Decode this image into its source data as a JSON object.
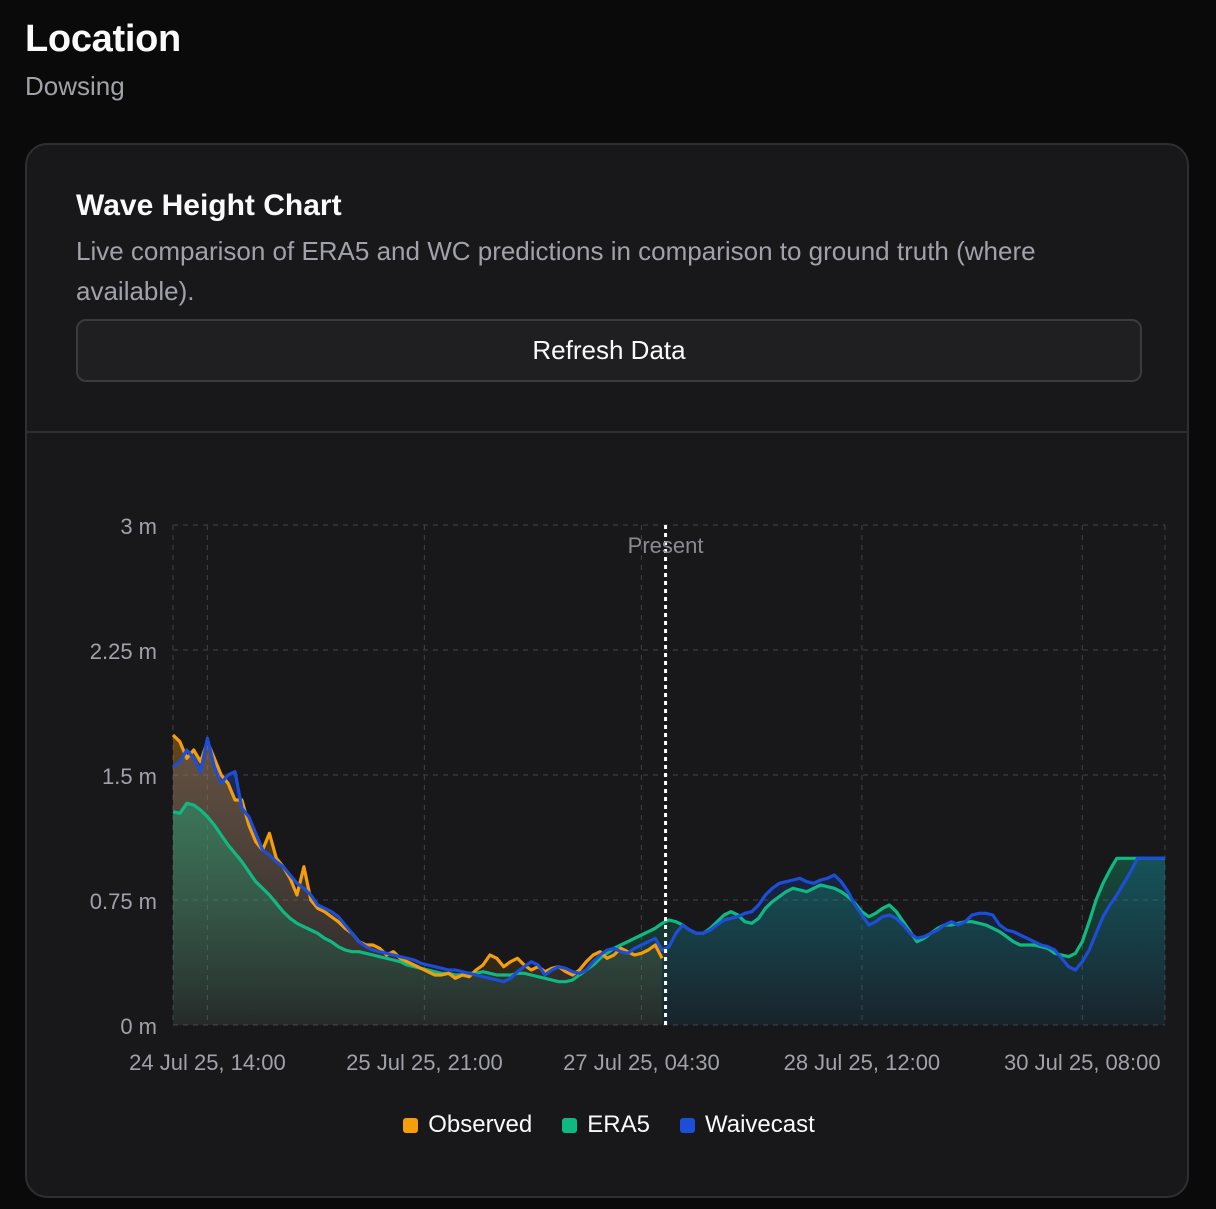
{
  "header": {
    "title": "Location",
    "subtitle": "Dowsing"
  },
  "card": {
    "title": "Wave Height Chart",
    "description": "Live comparison of ERA5 and WC predictions in comparison to ground truth (where available).",
    "refresh_label": "Refresh Data"
  },
  "colors": {
    "observed": "#f59e0b",
    "era5": "#10b981",
    "waivecast": "#1d4ed8",
    "present_line": "#ffffff",
    "grid": "#3a3a40"
  },
  "chart_data": {
    "type": "line",
    "title": "Wave Height Chart",
    "ylabel": "",
    "xlabel": "",
    "ylim": [
      0,
      3
    ],
    "yticks": [
      "0 m",
      "0.75 m",
      "1.5 m",
      "2.25 m",
      "3 m"
    ],
    "yticks_values": [
      0,
      0.75,
      1.5,
      2.25,
      3
    ],
    "xlim": [
      0,
      144
    ],
    "xticks": [
      {
        "label": "24 Jul 25, 14:00",
        "x": 5
      },
      {
        "label": "25 Jul 25, 21:00",
        "x": 36.5
      },
      {
        "label": "27 Jul 25, 04:30",
        "x": 68
      },
      {
        "label": "28 Jul 25, 12:00",
        "x": 100
      },
      {
        "label": "30 Jul 25, 08:00",
        "x": 132
      }
    ],
    "present_x": 71.5,
    "present_label": "Present",
    "legend": [
      "Observed",
      "ERA5",
      "Waivecast"
    ],
    "legend_position": "bottom-center",
    "series": [
      {
        "name": "Observed",
        "x": [
          0,
          1,
          2,
          3,
          4,
          5,
          6,
          7,
          8,
          9,
          10,
          11,
          12,
          13,
          14,
          15,
          16,
          17,
          18,
          19,
          20,
          21,
          22,
          23,
          24,
          25,
          26,
          27,
          28,
          29,
          30,
          31,
          32,
          33,
          34,
          35,
          36,
          37,
          38,
          39,
          40,
          41,
          42,
          43,
          44,
          45,
          46,
          47,
          48,
          49,
          50,
          51,
          52,
          53,
          54,
          55,
          56,
          57,
          58,
          59,
          60,
          61,
          62,
          63,
          64,
          65,
          66,
          67,
          68,
          69,
          70,
          71
        ],
        "values": [
          1.74,
          1.7,
          1.6,
          1.65,
          1.58,
          1.7,
          1.6,
          1.5,
          1.45,
          1.35,
          1.35,
          1.2,
          1.1,
          1.05,
          1.15,
          1.0,
          0.95,
          0.88,
          0.78,
          0.95,
          0.75,
          0.7,
          0.68,
          0.65,
          0.62,
          0.58,
          0.55,
          0.5,
          0.48,
          0.48,
          0.46,
          0.42,
          0.44,
          0.4,
          0.38,
          0.36,
          0.34,
          0.32,
          0.3,
          0.3,
          0.31,
          0.28,
          0.3,
          0.29,
          0.33,
          0.36,
          0.42,
          0.4,
          0.35,
          0.38,
          0.4,
          0.36,
          0.33,
          0.35,
          0.32,
          0.34,
          0.35,
          0.32,
          0.3,
          0.33,
          0.38,
          0.42,
          0.44,
          0.4,
          0.42,
          0.46,
          0.44,
          0.42,
          0.43,
          0.45,
          0.48,
          0.4
        ]
      },
      {
        "name": "ERA5",
        "x": [
          0,
          1,
          2,
          3,
          4,
          5,
          6,
          7,
          8,
          9,
          10,
          11,
          12,
          13,
          14,
          15,
          16,
          17,
          18,
          19,
          20,
          21,
          22,
          23,
          24,
          25,
          26,
          27,
          28,
          29,
          30,
          31,
          32,
          33,
          34,
          35,
          36,
          37,
          38,
          39,
          40,
          41,
          42,
          43,
          44,
          45,
          46,
          47,
          48,
          49,
          50,
          51,
          52,
          53,
          54,
          55,
          56,
          57,
          58,
          59,
          60,
          61,
          62,
          63,
          64,
          65,
          66,
          67,
          68,
          69,
          70,
          71,
          72,
          73,
          74,
          75,
          76,
          77,
          78,
          79,
          80,
          81,
          82,
          83,
          84,
          85,
          86,
          87,
          88,
          89,
          90,
          91,
          92,
          93,
          94,
          95,
          96,
          97,
          98,
          99,
          100,
          101,
          102,
          103,
          104,
          105,
          106,
          107,
          108,
          109,
          110,
          111,
          112,
          113,
          114,
          115,
          116,
          117,
          118,
          119,
          120,
          121,
          122,
          123,
          124,
          125,
          126,
          127,
          128,
          129,
          130,
          131,
          132,
          133,
          134,
          135,
          136,
          137,
          138,
          139,
          140,
          141,
          142,
          143,
          144
        ],
        "values": [
          1.28,
          1.27,
          1.33,
          1.32,
          1.29,
          1.25,
          1.2,
          1.14,
          1.08,
          1.03,
          0.98,
          0.92,
          0.86,
          0.82,
          0.78,
          0.73,
          0.68,
          0.64,
          0.61,
          0.59,
          0.57,
          0.55,
          0.52,
          0.5,
          0.47,
          0.45,
          0.44,
          0.44,
          0.43,
          0.42,
          0.41,
          0.4,
          0.39,
          0.38,
          0.36,
          0.35,
          0.34,
          0.33,
          0.32,
          0.31,
          0.31,
          0.3,
          0.3,
          0.31,
          0.31,
          0.32,
          0.31,
          0.3,
          0.3,
          0.3,
          0.31,
          0.31,
          0.3,
          0.29,
          0.28,
          0.27,
          0.26,
          0.26,
          0.27,
          0.3,
          0.33,
          0.36,
          0.4,
          0.43,
          0.46,
          0.48,
          0.5,
          0.52,
          0.54,
          0.56,
          0.58,
          0.61,
          0.63,
          0.62,
          0.6,
          0.57,
          0.55,
          0.55,
          0.58,
          0.62,
          0.66,
          0.68,
          0.66,
          0.62,
          0.61,
          0.64,
          0.7,
          0.74,
          0.77,
          0.8,
          0.82,
          0.81,
          0.8,
          0.82,
          0.84,
          0.83,
          0.82,
          0.8,
          0.77,
          0.73,
          0.68,
          0.65,
          0.67,
          0.7,
          0.72,
          0.68,
          0.62,
          0.56,
          0.5,
          0.52,
          0.55,
          0.58,
          0.6,
          0.6,
          0.61,
          0.62,
          0.62,
          0.61,
          0.6,
          0.58,
          0.56,
          0.53,
          0.5,
          0.48,
          0.48,
          0.48,
          0.47,
          0.46,
          0.43,
          0.42,
          0.41,
          0.43,
          0.5,
          0.62,
          0.75,
          0.85,
          0.93,
          1.0,
          1.0,
          1.0,
          1.0,
          1.0,
          1.0,
          1.0,
          1.0
        ]
      },
      {
        "name": "Waivecast",
        "x": [
          0,
          1,
          2,
          3,
          4,
          5,
          6,
          7,
          8,
          9,
          10,
          11,
          12,
          13,
          14,
          15,
          16,
          17,
          18,
          19,
          20,
          21,
          22,
          23,
          24,
          25,
          26,
          27,
          28,
          29,
          30,
          31,
          32,
          33,
          34,
          35,
          36,
          37,
          38,
          39,
          40,
          41,
          42,
          43,
          44,
          45,
          46,
          47,
          48,
          49,
          50,
          51,
          52,
          53,
          54,
          55,
          56,
          57,
          58,
          59,
          60,
          61,
          62,
          63,
          64,
          65,
          66,
          67,
          68,
          69,
          70,
          71,
          72,
          73,
          74,
          75,
          76,
          77,
          78,
          79,
          80,
          81,
          82,
          83,
          84,
          85,
          86,
          87,
          88,
          89,
          90,
          91,
          92,
          93,
          94,
          95,
          96,
          97,
          98,
          99,
          100,
          101,
          102,
          103,
          104,
          105,
          106,
          107,
          108,
          109,
          110,
          111,
          112,
          113,
          114,
          115,
          116,
          117,
          118,
          119,
          120,
          121,
          122,
          123,
          124,
          125,
          126,
          127,
          128,
          129,
          130,
          131,
          132,
          133,
          134,
          135,
          136,
          137,
          138,
          139,
          140,
          141,
          142,
          143,
          144
        ],
        "values": [
          1.55,
          1.58,
          1.65,
          1.6,
          1.52,
          1.72,
          1.55,
          1.45,
          1.5,
          1.52,
          1.3,
          1.25,
          1.15,
          1.05,
          1.02,
          0.98,
          0.95,
          0.9,
          0.85,
          0.82,
          0.78,
          0.72,
          0.7,
          0.68,
          0.65,
          0.6,
          0.55,
          0.5,
          0.47,
          0.45,
          0.44,
          0.43,
          0.42,
          0.41,
          0.4,
          0.39,
          0.37,
          0.36,
          0.35,
          0.34,
          0.33,
          0.33,
          0.32,
          0.31,
          0.3,
          0.29,
          0.28,
          0.27,
          0.26,
          0.28,
          0.32,
          0.35,
          0.38,
          0.36,
          0.3,
          0.33,
          0.35,
          0.34,
          0.32,
          0.31,
          0.33,
          0.38,
          0.42,
          0.45,
          0.46,
          0.44,
          0.43,
          0.46,
          0.48,
          0.5,
          0.52,
          0.45,
          0.47,
          0.55,
          0.6,
          0.57,
          0.55,
          0.55,
          0.57,
          0.6,
          0.63,
          0.64,
          0.65,
          0.67,
          0.68,
          0.72,
          0.78,
          0.82,
          0.85,
          0.86,
          0.87,
          0.88,
          0.86,
          0.85,
          0.87,
          0.88,
          0.9,
          0.86,
          0.8,
          0.72,
          0.66,
          0.6,
          0.62,
          0.65,
          0.66,
          0.64,
          0.6,
          0.55,
          0.52,
          0.53,
          0.55,
          0.57,
          0.6,
          0.62,
          0.6,
          0.62,
          0.66,
          0.67,
          0.67,
          0.66,
          0.6,
          0.57,
          0.56,
          0.54,
          0.52,
          0.5,
          0.48,
          0.47,
          0.45,
          0.4,
          0.35,
          0.33,
          0.38,
          0.45,
          0.55,
          0.65,
          0.72,
          0.78,
          0.85,
          0.92,
          1.0,
          1.0,
          1.0,
          1.0,
          1.0
        ]
      }
    ]
  },
  "legend": {
    "observed": "Observed",
    "era5": "ERA5",
    "waivecast": "Waivecast"
  }
}
